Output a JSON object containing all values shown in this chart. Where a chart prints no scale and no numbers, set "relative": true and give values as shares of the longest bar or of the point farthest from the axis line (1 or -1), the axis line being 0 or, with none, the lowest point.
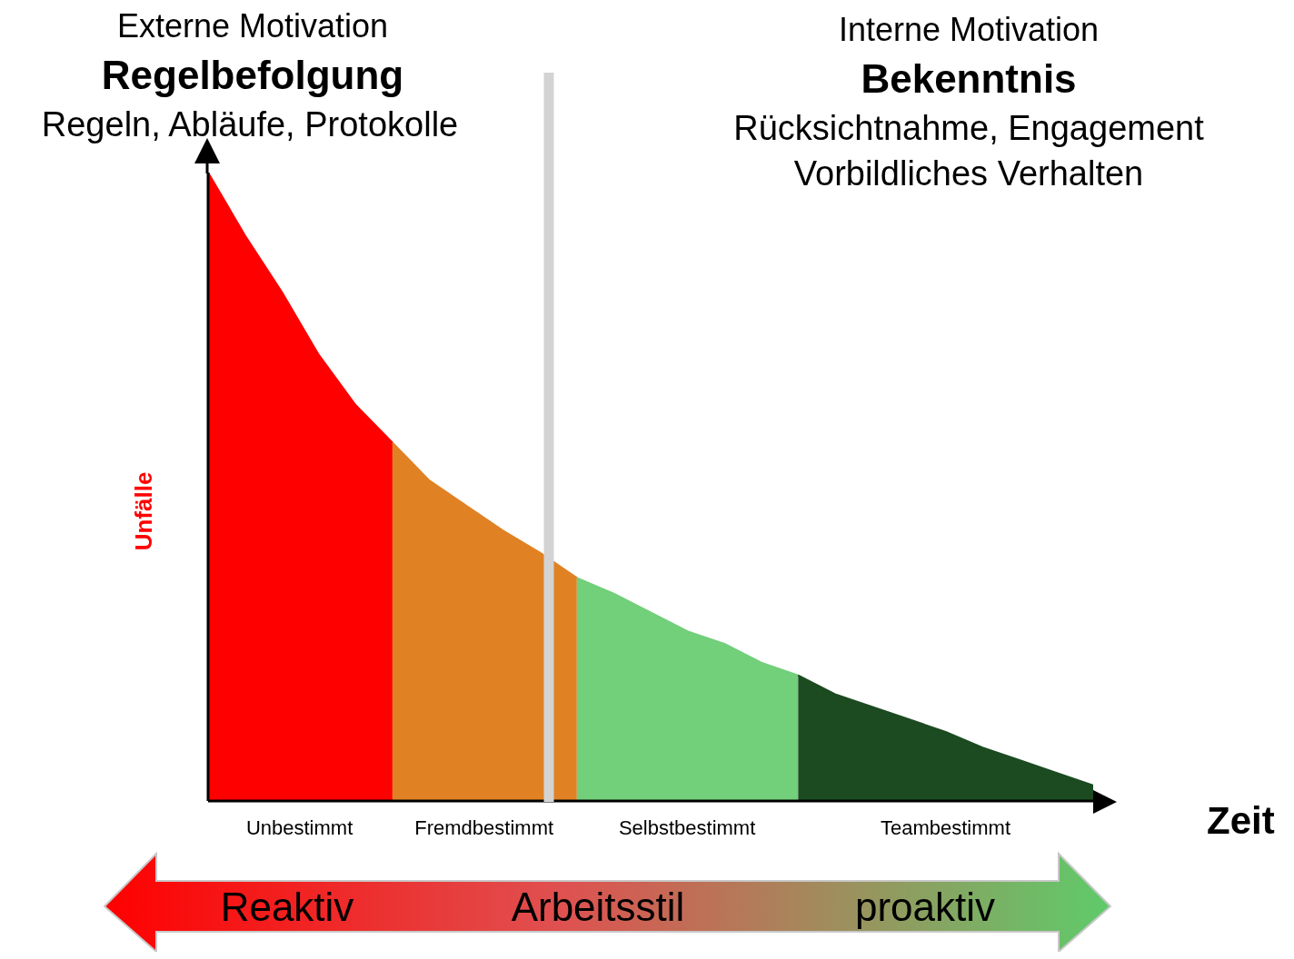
{
  "chart_data": {
    "type": "area",
    "relative": true,
    "xlabel": "Zeit",
    "ylabel": "Unfälle",
    "categories": [
      null,
      null,
      null,
      null,
      null,
      null,
      null,
      null,
      null,
      null,
      null,
      null,
      null,
      null,
      null,
      null,
      null,
      null,
      null,
      null,
      null,
      null,
      null,
      null,
      null
    ],
    "series": [
      {
        "name": "Unbestimmt",
        "color": "#ff0000",
        "values": [
          1.0,
          0.9,
          0.81,
          0.71,
          0.63,
          0.57,
          null,
          null,
          null,
          null,
          null,
          null,
          null,
          null,
          null,
          null,
          null,
          null,
          null,
          null,
          null,
          null,
          null,
          null,
          null
        ]
      },
      {
        "name": "Fremdbestimmt",
        "color": "#e08224",
        "values": [
          null,
          null,
          null,
          null,
          null,
          0.57,
          0.51,
          0.47,
          0.43,
          0.395,
          0.355,
          null,
          null,
          null,
          null,
          null,
          null,
          null,
          null,
          null,
          null,
          null,
          null,
          null,
          null
        ]
      },
      {
        "name": "Selbstbestimmt",
        "color": "#72cf7a",
        "values": [
          null,
          null,
          null,
          null,
          null,
          null,
          null,
          null,
          null,
          null,
          0.355,
          0.33,
          0.3,
          0.27,
          0.25,
          0.22,
          0.2,
          null,
          null,
          null,
          null,
          null,
          null,
          null,
          null
        ]
      },
      {
        "name": "Teambestimmt",
        "color": "#1c4b21",
        "values": [
          null,
          null,
          null,
          null,
          null,
          null,
          null,
          null,
          null,
          null,
          null,
          null,
          null,
          null,
          null,
          null,
          0.2,
          0.17,
          0.15,
          0.13,
          0.11,
          0.085,
          0.065,
          0.045,
          0.025
        ]
      }
    ],
    "annotations": [
      "Externe Motivation",
      "Regelbefolgung",
      "Regeln, Abläufe, Protokolle",
      "Interne Motivation",
      "Bekenntnis",
      "Rücksichtnahme, Engagement",
      "Vorbildliches Verhalten",
      "Reaktiv",
      "Arbeitsstil",
      "proaktiv"
    ]
  }
}
